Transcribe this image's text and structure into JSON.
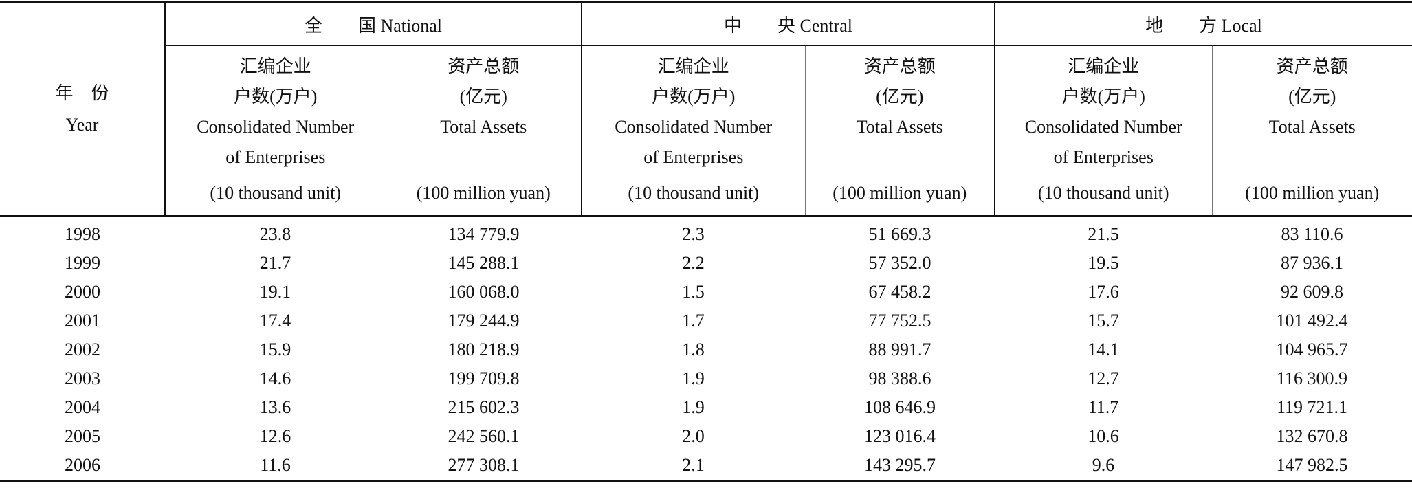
{
  "table": {
    "year_header": [
      "年　份",
      "Year"
    ],
    "groups": [
      "全　　国 National",
      "中　　央 Central",
      "地　　方 Local"
    ],
    "subheaders": [
      [
        "汇编企业",
        "户数(万户)",
        "Consolidated Number",
        "of Enterprises",
        "(10 thousand unit)"
      ],
      [
        "资产总额",
        "(亿元)",
        "Total Assets",
        "(100 million yuan)"
      ],
      [
        "汇编企业",
        "户数(万户)",
        "Consolidated Number",
        "of Enterprises",
        "(10 thousand unit)"
      ],
      [
        "资产总额",
        "(亿元)",
        "Total Assets",
        "(100 million yuan)"
      ],
      [
        "汇编企业",
        "户数(万户)",
        "Consolidated Number",
        "of Enterprises",
        "(10 thousand unit)"
      ],
      [
        "资产总额",
        "(亿元)",
        "Total Assets",
        "(100 million yuan)"
      ]
    ],
    "rows": [
      [
        "1998",
        "23.8",
        "134 779.9",
        "2.3",
        "51 669.3",
        "21.5",
        "83 110.6"
      ],
      [
        "1999",
        "21.7",
        "145 288.1",
        "2.2",
        "57 352.0",
        "19.5",
        "87 936.1"
      ],
      [
        "2000",
        "19.1",
        "160 068.0",
        "1.5",
        "67 458.2",
        "17.6",
        "92 609.8"
      ],
      [
        "2001",
        "17.4",
        "179 244.9",
        "1.7",
        "77 752.5",
        "15.7",
        "101 492.4"
      ],
      [
        "2002",
        "15.9",
        "180 218.9",
        "1.8",
        "88 991.7",
        "14.1",
        "104 965.7"
      ],
      [
        "2003",
        "14.6",
        "199 709.8",
        "1.9",
        "98 388.6",
        "12.7",
        "116 300.9"
      ],
      [
        "2004",
        "13.6",
        "215 602.3",
        "1.9",
        "108 646.9",
        "11.7",
        "119 721.1"
      ],
      [
        "2005",
        "12.6",
        "242 560.1",
        "2.0",
        "123 016.4",
        "10.6",
        "132 670.8"
      ],
      [
        "2006",
        "11.6",
        "277 308.1",
        "2.1",
        "143 295.7",
        "9.6",
        "147 982.5"
      ]
    ]
  }
}
